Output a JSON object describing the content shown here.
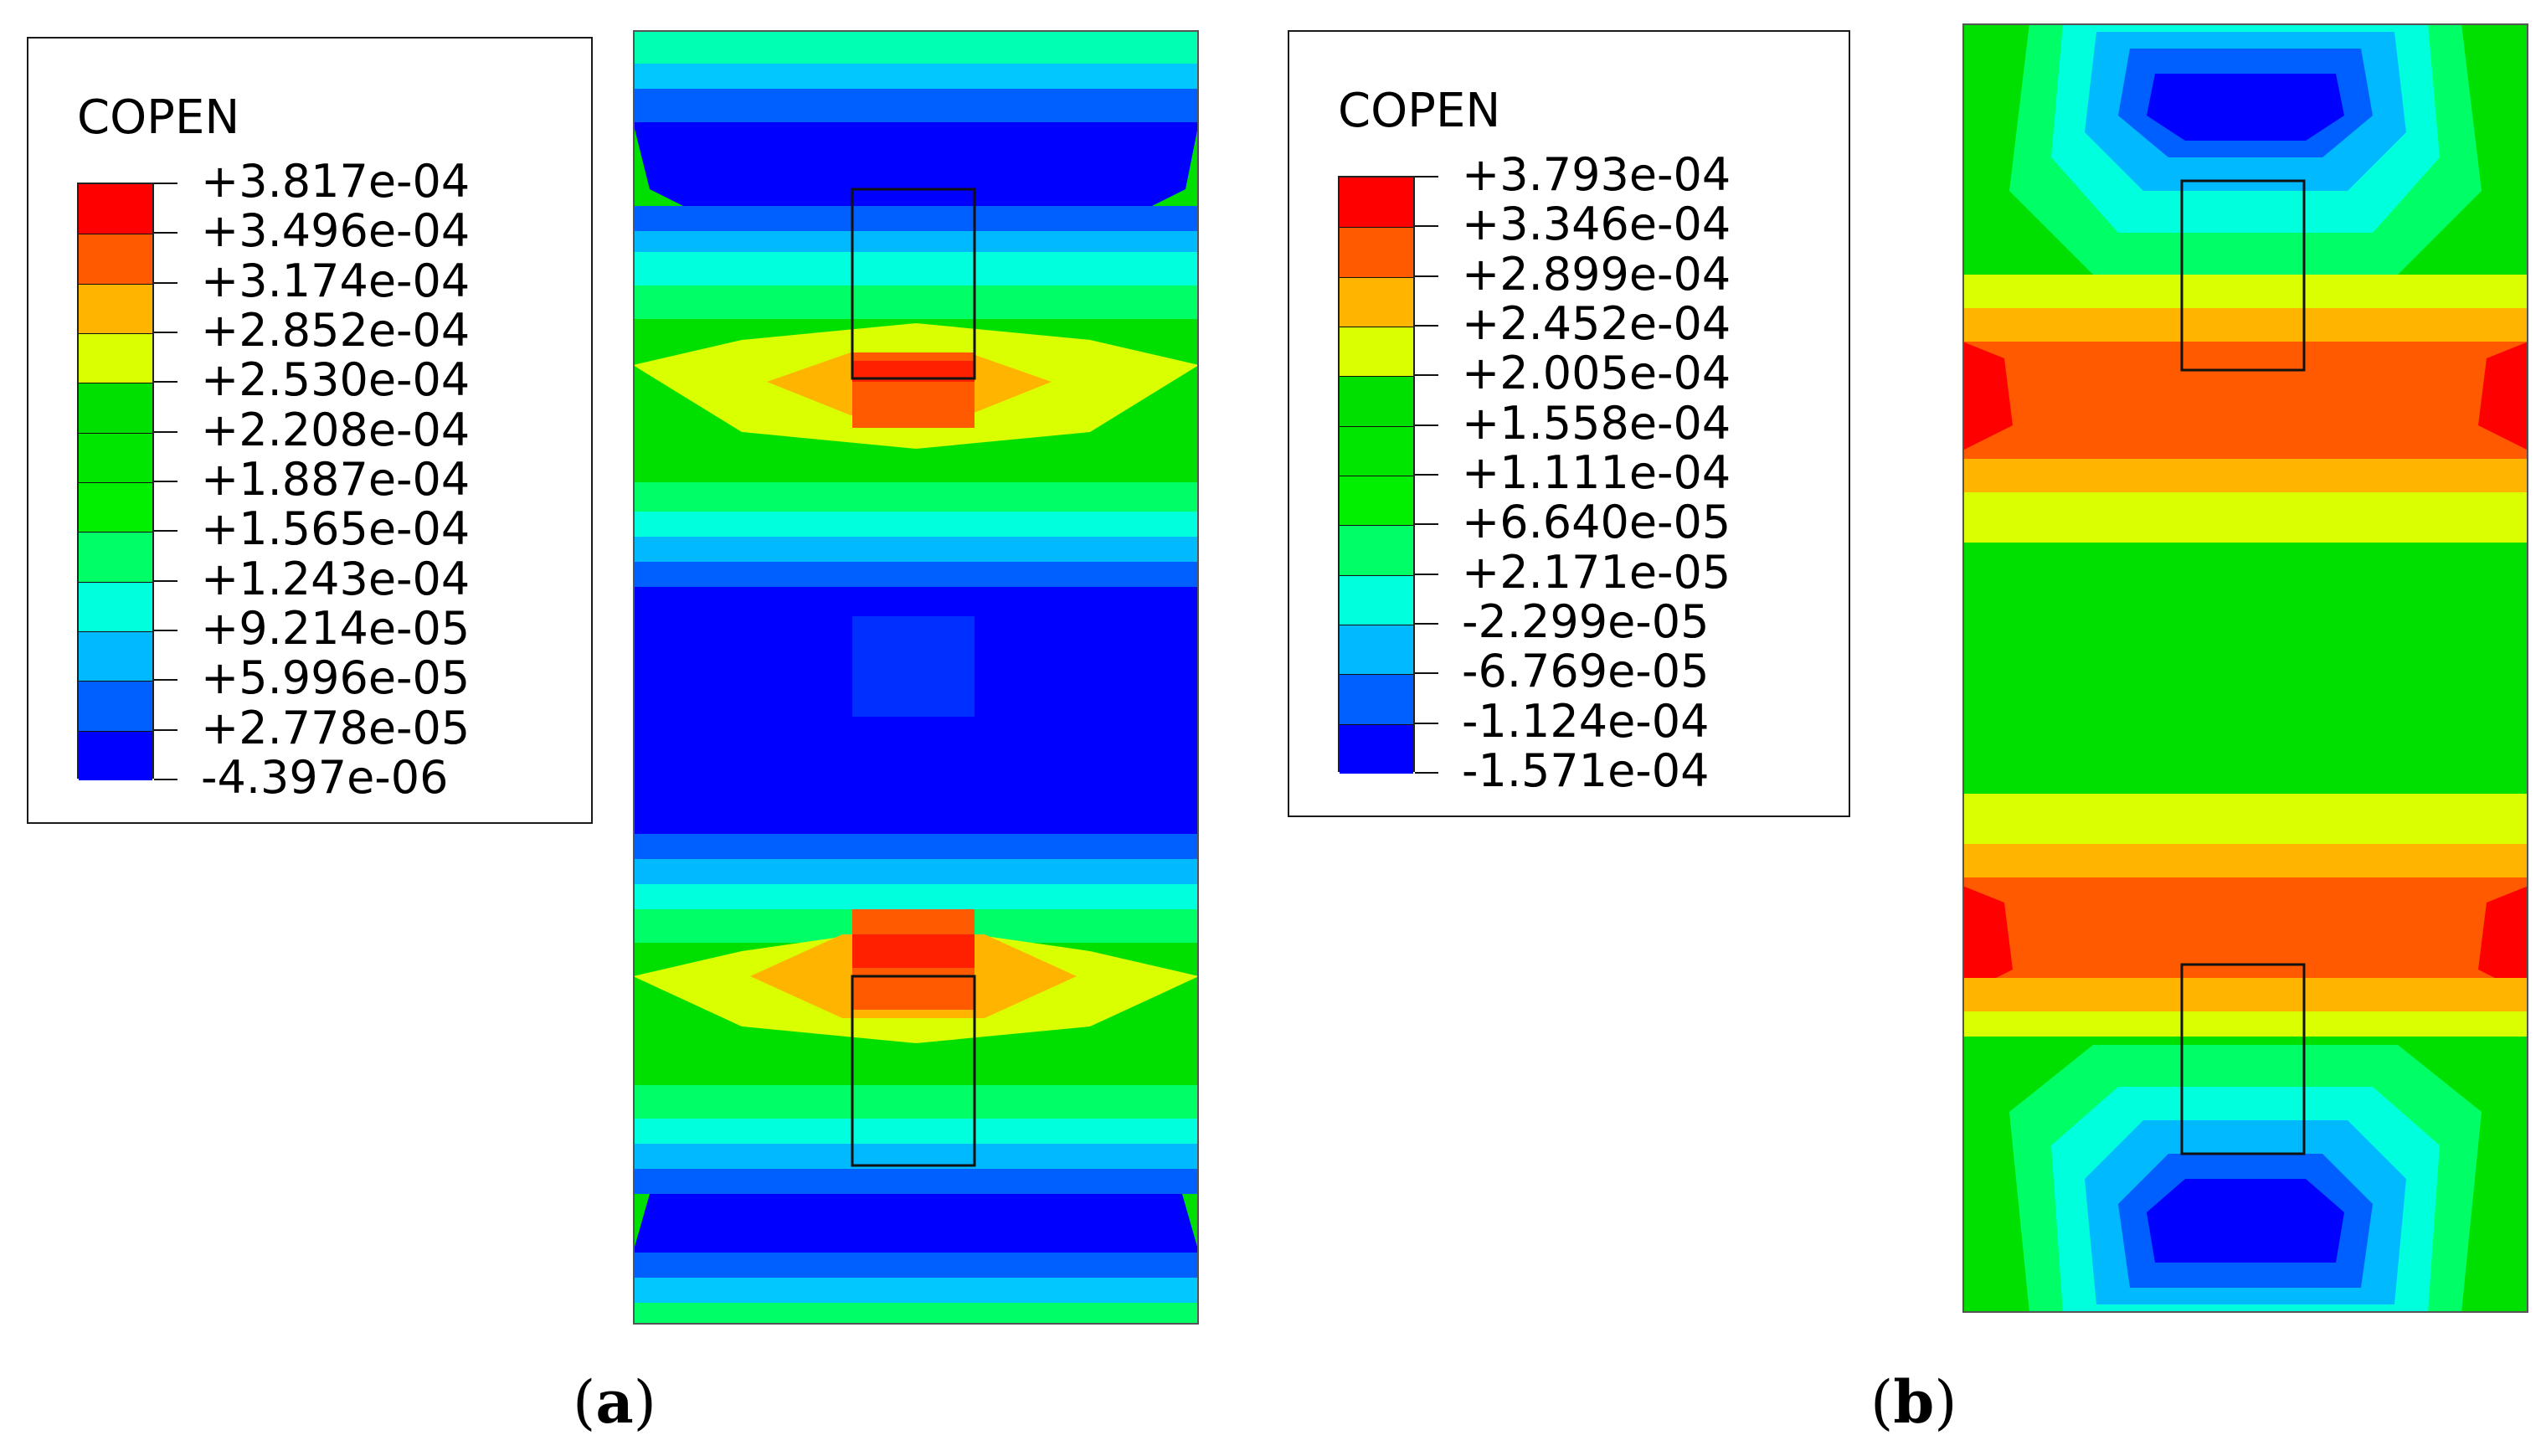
{
  "panels": [
    {
      "id": "a",
      "legend_title": "COPEN",
      "levels": [
        "+3.817e-04",
        "+3.496e-04",
        "+3.174e-04",
        "+2.852e-04",
        "+2.530e-04",
        "+2.208e-04",
        "+1.887e-04",
        "+1.565e-04",
        "+1.243e-04",
        "+9.214e-05",
        "+5.996e-05",
        "+2.778e-05",
        "-4.397e-06"
      ],
      "caption_open": "(",
      "caption_letter": "a",
      "caption_close": ")"
    },
    {
      "id": "b",
      "legend_title": "COPEN",
      "levels": [
        "+3.793e-04",
        "+3.346e-04",
        "+2.899e-04",
        "+2.452e-04",
        "+2.005e-04",
        "+1.558e-04",
        "+1.111e-04",
        "+6.640e-05",
        "+2.171e-05",
        "-2.299e-05",
        "-6.769e-05",
        "-1.124e-04",
        "-1.571e-04"
      ],
      "caption_open": "(",
      "caption_letter": "b",
      "caption_close": ")"
    }
  ],
  "colormap": [
    "#ff0000",
    "#ff5a00",
    "#ffb400",
    "#d9ff00",
    "#00e000",
    "#00e600",
    "#00f000",
    "#00ff66",
    "#00ffdd",
    "#00b9ff",
    "#0060ff",
    "#0000ff"
  ]
}
